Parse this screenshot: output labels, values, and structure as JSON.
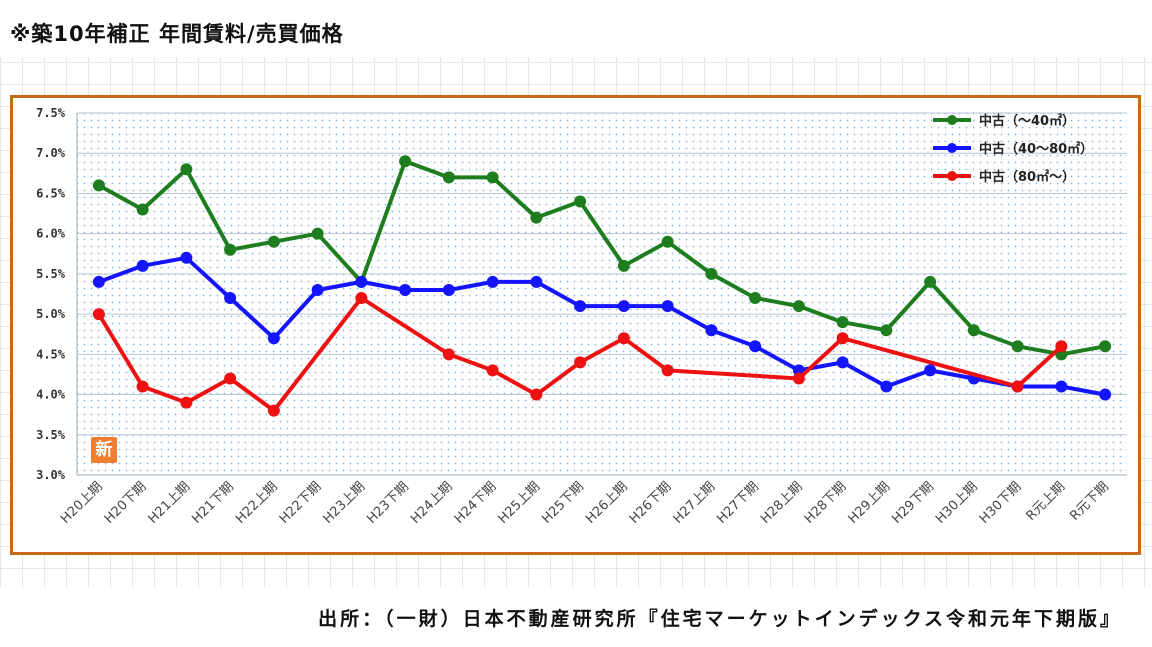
{
  "page": {
    "title": "※築10年補正 年間賃料/売買価格",
    "source": "出所：（一財）日本不動産研究所『住宅マーケットインデックス令和元年下期版』",
    "badge_text": "新"
  },
  "chart_data": {
    "type": "line",
    "title": "",
    "xlabel": "",
    "ylabel": "",
    "ylim": [
      3.0,
      7.5
    ],
    "yticks": [
      "3.0%",
      "3.5%",
      "4.0%",
      "4.5%",
      "5.0%",
      "5.5%",
      "6.0%",
      "6.5%",
      "7.0%",
      "7.5%"
    ],
    "categories": [
      "H20上期",
      "H20下期",
      "H21上期",
      "H21下期",
      "H22上期",
      "H22下期",
      "H23上期",
      "H23下期",
      "H24上期",
      "H24下期",
      "H25上期",
      "H25下期",
      "H26上期",
      "H26下期",
      "H27上期",
      "H27下期",
      "H28上期",
      "H28下期",
      "H29上期",
      "H29下期",
      "H30上期",
      "H30下期",
      "R元上期",
      "R元下期"
    ],
    "grid": true,
    "legend_position": "top-right",
    "series": [
      {
        "name": "中古（～40㎡）",
        "color": "#1e7d1e",
        "values": [
          6.6,
          6.3,
          6.8,
          5.8,
          5.9,
          6.0,
          5.4,
          6.9,
          6.7,
          6.7,
          6.2,
          6.4,
          5.6,
          5.9,
          5.5,
          5.2,
          5.1,
          4.9,
          4.8,
          5.4,
          4.8,
          4.6,
          4.5,
          4.6
        ]
      },
      {
        "name": "中古（40～80㎡）",
        "color": "#1414ff",
        "values": [
          5.4,
          5.6,
          5.7,
          5.2,
          4.7,
          5.3,
          5.4,
          5.3,
          5.3,
          5.4,
          5.4,
          5.1,
          5.1,
          5.1,
          4.8,
          4.6,
          4.3,
          4.4,
          4.1,
          4.3,
          4.2,
          4.1,
          4.1,
          4.0
        ]
      },
      {
        "name": "中古（80㎡～）",
        "color": "#ee1111",
        "values": [
          5.0,
          4.1,
          3.9,
          4.2,
          3.8,
          null,
          5.2,
          null,
          4.5,
          4.3,
          4.0,
          4.4,
          4.7,
          4.3,
          null,
          null,
          4.2,
          4.7,
          null,
          null,
          null,
          4.1,
          4.6,
          null
        ]
      }
    ]
  }
}
